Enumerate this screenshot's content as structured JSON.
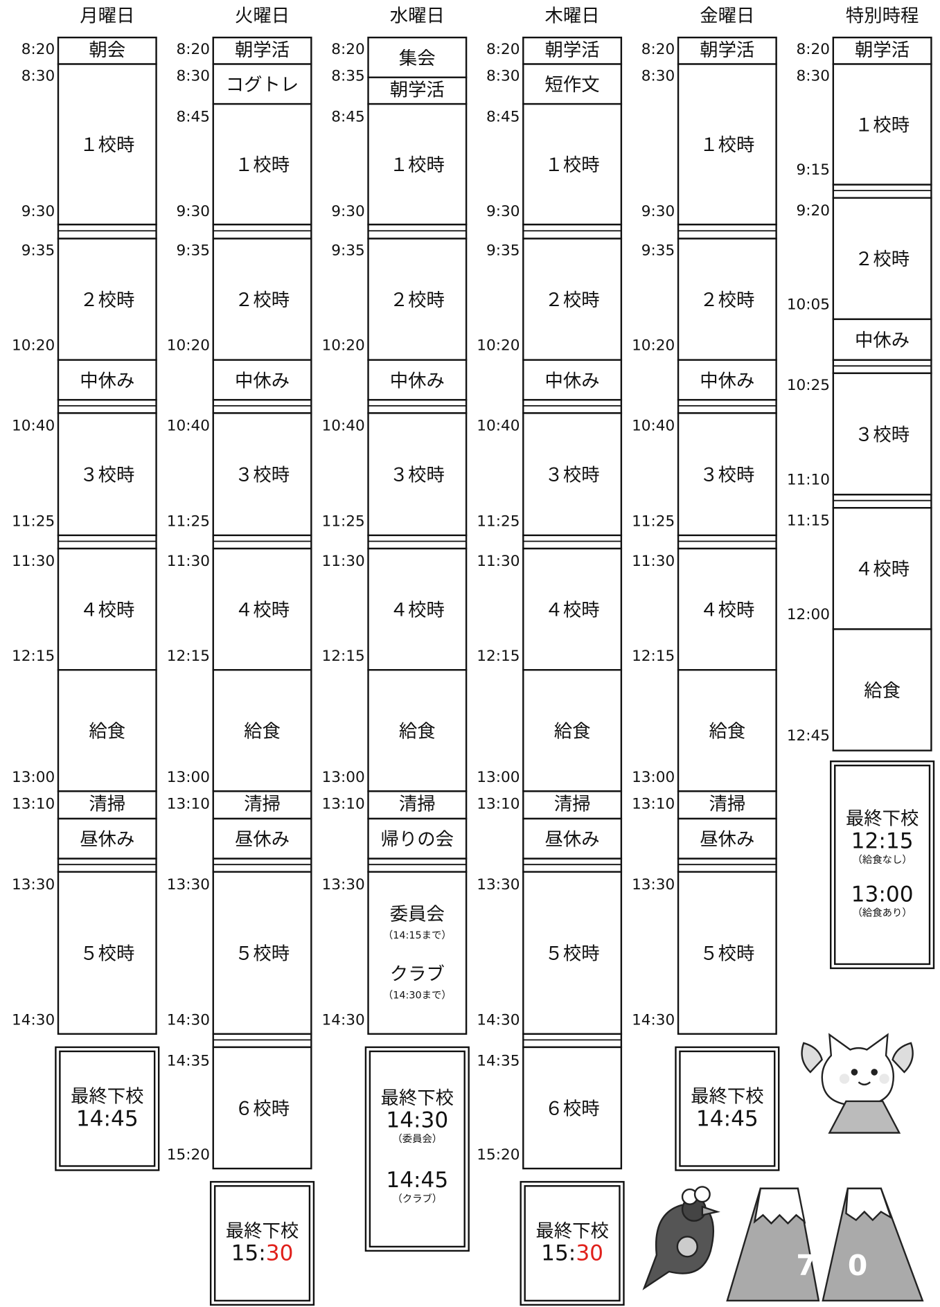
{
  "columns": [
    {
      "day": "月曜日",
      "times": [
        "8:20",
        "8:30",
        "9:30",
        "9:35",
        "10:20",
        "10:40",
        "11:25",
        "11:30",
        "12:15",
        "13:00",
        "13:10",
        "13:30",
        "14:30"
      ],
      "blocks": [
        "朝会",
        "１校時",
        "２校時",
        "中休み",
        "３校時",
        "４校時",
        "給食",
        "清掃",
        "昼休み",
        "５校時"
      ],
      "dismissal": {
        "title": "最終下校",
        "times": [
          {
            "time": "14:45"
          }
        ]
      }
    },
    {
      "day": "火曜日",
      "times": [
        "8:20",
        "8:30",
        "8:45",
        "9:30",
        "9:35",
        "10:20",
        "10:40",
        "11:25",
        "11:30",
        "12:15",
        "13:00",
        "13:10",
        "13:30",
        "14:30",
        "14:35",
        "15:20"
      ],
      "blocks": [
        "朝学活",
        "コグトレ",
        "１校時",
        "２校時",
        "中休み",
        "３校時",
        "４校時",
        "給食",
        "清掃",
        "昼休み",
        "５校時",
        "６校時"
      ],
      "dismissal": {
        "title": "最終下校",
        "times": [
          {
            "time_parts": [
              "15:",
              "30"
            ]
          }
        ]
      }
    },
    {
      "day": "水曜日",
      "times": [
        "8:20",
        "8:35",
        "8:45",
        "9:30",
        "9:35",
        "10:20",
        "10:40",
        "11:25",
        "11:30",
        "12:15",
        "13:00",
        "13:10",
        "13:30",
        "14:30"
      ],
      "blocks": [
        "集会",
        "朝学活",
        "１校時",
        "２校時",
        "中休み",
        "３校時",
        "４校時",
        "給食",
        "清掃",
        "帰りの会",
        {
          "items": [
            {
              "label": "委員会",
              "note": "（14:15まで）"
            },
            {
              "label": "クラブ",
              "note": "（14:30まで）"
            }
          ]
        }
      ],
      "dismissal": {
        "title": "最終下校",
        "times": [
          {
            "time": "14:30",
            "note": "（委員会）"
          },
          {
            "time": "14:45",
            "note": "（クラブ）"
          }
        ]
      }
    },
    {
      "day": "木曜日",
      "times": [
        "8:20",
        "8:30",
        "8:45",
        "9:30",
        "9:35",
        "10:20",
        "10:40",
        "11:25",
        "11:30",
        "12:15",
        "13:00",
        "13:10",
        "13:30",
        "14:30",
        "14:35",
        "15:20"
      ],
      "blocks": [
        "朝学活",
        "短作文",
        "１校時",
        "２校時",
        "中休み",
        "３校時",
        "４校時",
        "給食",
        "清掃",
        "昼休み",
        "５校時",
        "６校時"
      ],
      "dismissal": {
        "title": "最終下校",
        "times": [
          {
            "time_parts": [
              "15:",
              "30"
            ]
          }
        ]
      }
    },
    {
      "day": "金曜日",
      "times": [
        "8:20",
        "8:30",
        "9:30",
        "9:35",
        "10:20",
        "10:40",
        "11:25",
        "11:30",
        "12:15",
        "13:00",
        "13:10",
        "13:30",
        "14:30"
      ],
      "blocks": [
        "朝学活",
        "１校時",
        "２校時",
        "中休み",
        "３校時",
        "４校時",
        "給食",
        "清掃",
        "昼休み",
        "５校時"
      ],
      "dismissal": {
        "title": "最終下校",
        "times": [
          {
            "time": "14:45"
          }
        ]
      }
    },
    {
      "day": "特別時程",
      "times": [
        "8:20",
        "8:30",
        "9:15",
        "9:20",
        "10:05",
        "10:25",
        "11:10",
        "11:15",
        "12:00",
        "12:45"
      ],
      "blocks": [
        "朝学活",
        "１校時",
        "２校時",
        "中休み",
        "３校時",
        "４校時",
        "給食"
      ],
      "dismissal": {
        "title": "最終下校",
        "times": [
          {
            "time": "12:15",
            "note": "（給食なし）"
          },
          {
            "time": "13:00",
            "note": "（給食あり）"
          }
        ]
      }
    }
  ],
  "accent_color": "#e0201b"
}
